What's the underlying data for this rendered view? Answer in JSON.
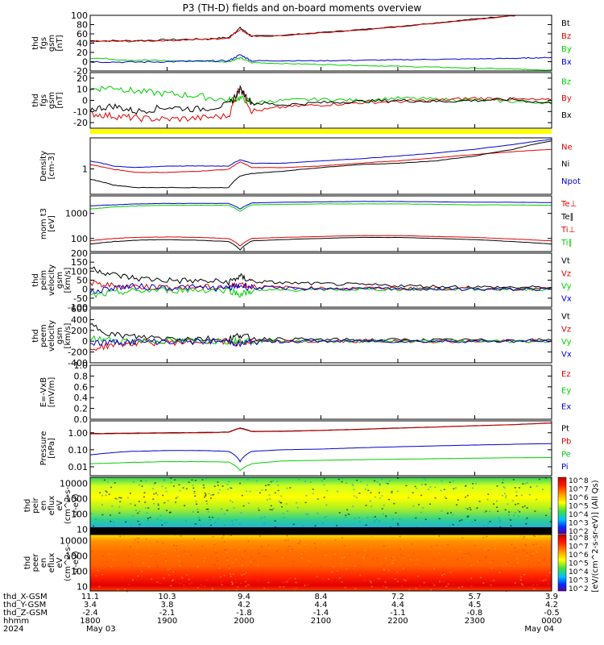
{
  "title": "P3 (TH-D) fields and on-board moments overview",
  "colors": {
    "black": "#000000",
    "red": "#e00000",
    "green": "#00d000",
    "blue": "#0000d0",
    "yellow": "#ffff00"
  },
  "colorbar": {
    "label": "[eV/(cm^2-s-sr-eV)] (All Qs)",
    "top_ticks": [
      "10^8",
      "10^7",
      "10^6",
      "10^5",
      "10^4",
      "10^3",
      "10^2"
    ],
    "bottom_ticks": [
      "10^8",
      "10^7",
      "10^6",
      "10^5",
      "10^4",
      "10^3",
      "10^2"
    ]
  },
  "xaxis": {
    "row_labels": [
      "thd_X-GSM",
      "thd_Y-GSM",
      "thd_Z-GSM",
      "hhmm",
      "2024"
    ],
    "columns": [
      {
        "x": "11.1",
        "y": "3.4",
        "z": "-2.4",
        "hhmm": "1800",
        "date": "May 03"
      },
      {
        "x": "10.3",
        "y": "3.8",
        "z": "-2.1",
        "hhmm": "1900",
        "date": ""
      },
      {
        "x": "9.4",
        "y": "4.2",
        "z": "-1.8",
        "hhmm": "2000",
        "date": ""
      },
      {
        "x": "8.4",
        "y": "4.4",
        "z": "-1.4",
        "hhmm": "2100",
        "date": ""
      },
      {
        "x": "7.2",
        "y": "4.4",
        "z": "-1.1",
        "hhmm": "2200",
        "date": ""
      },
      {
        "x": "5.7",
        "y": "4.5",
        "z": "-0.8",
        "hhmm": "2300",
        "date": ""
      },
      {
        "x": "3.9",
        "y": "4.2",
        "z": "-0.5",
        "hhmm": "0000",
        "date": "May 04"
      }
    ]
  },
  "chart_data": [
    {
      "type": "line",
      "panel": "fgs_gsm_total",
      "ylabel": [
        "thd",
        "fgs",
        "gsm",
        "[nT]"
      ],
      "yticks": [
        "100",
        "80",
        "60",
        "40",
        "20",
        "0",
        "-20"
      ],
      "ylim": [
        -20,
        100
      ],
      "legend": [
        {
          "name": "Bt",
          "color": "black"
        },
        {
          "name": "Bz",
          "color": "red"
        },
        {
          "name": "By",
          "color": "green"
        },
        {
          "name": "Bx",
          "color": "blue"
        }
      ],
      "x": [
        18.0,
        18.5,
        19.0,
        19.5,
        19.8,
        19.95,
        20.1,
        20.5,
        21.0,
        21.5,
        22.0,
        22.5,
        23.0,
        23.5,
        23.7,
        24.0
      ],
      "series": [
        {
          "color": "black",
          "values": [
            45,
            45,
            47,
            49,
            52,
            73,
            55,
            57,
            63,
            69,
            76,
            84,
            92,
            100,
            104,
            110
          ]
        },
        {
          "color": "red",
          "values": [
            44,
            44,
            46,
            48,
            51,
            70,
            54,
            56,
            62,
            68,
            75,
            83,
            91,
            99,
            103,
            109
          ]
        },
        {
          "color": "green",
          "values": [
            8,
            4,
            2,
            1,
            0,
            8,
            -2,
            -4,
            -6,
            -8,
            -10,
            -12,
            -14,
            -16,
            -17,
            -18
          ]
        },
        {
          "color": "blue",
          "values": [
            0,
            -1,
            0,
            1,
            2,
            15,
            2,
            2,
            2,
            3,
            4,
            5,
            6,
            7,
            8,
            9
          ]
        }
      ]
    },
    {
      "type": "line",
      "panel": "fgs_gsm_components",
      "ylabel": [
        "thd",
        "fgs",
        "gsm",
        "[nT]"
      ],
      "yticks": [
        "20",
        "10",
        "0",
        "-10",
        "-20"
      ],
      "ylim": [
        -25,
        25
      ],
      "legend": [
        {
          "name": "Bz",
          "color": "green"
        },
        {
          "name": "By",
          "color": "red"
        },
        {
          "name": "Bx",
          "color": "black"
        }
      ],
      "x": [
        18.0,
        18.3,
        18.6,
        19.0,
        19.4,
        19.8,
        19.95,
        20.1,
        20.5,
        21.0,
        21.5,
        22.0,
        22.5,
        23.0,
        23.5,
        24.0
      ],
      "series": [
        {
          "color": "green",
          "values": [
            10,
            12,
            8,
            6,
            4,
            0,
            2,
            -2,
            0,
            1,
            0,
            2,
            1,
            0,
            -1,
            -2
          ]
        },
        {
          "color": "red",
          "values": [
            -12,
            -14,
            -16,
            -17,
            -16,
            -14,
            13,
            -10,
            -6,
            -4,
            -2,
            -1,
            0,
            2,
            1,
            0
          ]
        },
        {
          "color": "black",
          "values": [
            -8,
            -5,
            -10,
            -6,
            -8,
            -4,
            10,
            -2,
            -4,
            -2,
            -1,
            0,
            -1,
            0,
            1,
            -3
          ]
        }
      ]
    },
    {
      "type": "line",
      "panel": "density",
      "ylabel": [
        "Density",
        "[cm-3]"
      ],
      "yticks": [
        "1"
      ],
      "legend": [
        {
          "name": "Ne",
          "color": "red"
        },
        {
          "name": "Ni",
          "color": "black"
        },
        {
          "name": "Npot",
          "color": "blue"
        }
      ],
      "ylim": [
        0.2,
        6
      ],
      "x": [
        18.0,
        18.3,
        18.6,
        19.0,
        19.4,
        19.8,
        19.95,
        20.1,
        20.5,
        21.0,
        21.5,
        22.0,
        22.5,
        23.0,
        23.5,
        24.0
      ],
      "series": [
        {
          "color": "blue",
          "values": [
            1.5,
            1.1,
            1.0,
            1.1,
            1.1,
            1.1,
            1.6,
            1.3,
            1.3,
            1.5,
            1.7,
            2.0,
            2.4,
            3.0,
            4.0,
            5.5
          ]
        },
        {
          "color": "red",
          "values": [
            1.2,
            0.9,
            0.75,
            0.75,
            0.8,
            0.9,
            1.4,
            1.0,
            1.0,
            1.1,
            1.3,
            1.5,
            1.8,
            2.2,
            2.6,
            3.0
          ]
        },
        {
          "color": "black",
          "values": [
            0.5,
            0.35,
            0.3,
            0.3,
            0.3,
            0.3,
            0.6,
            0.7,
            0.8,
            1.0,
            1.2,
            1.3,
            1.5,
            2.0,
            3.0,
            5.0
          ]
        }
      ]
    },
    {
      "type": "line",
      "panel": "temperature",
      "ylabel": [
        "mom t3",
        "[eV]"
      ],
      "yticks": [
        "1000",
        "100"
      ],
      "ylim": [
        30,
        5000
      ],
      "legend": [
        {
          "name": "Te⊥",
          "color": "red"
        },
        {
          "name": "Te∥",
          "color": "black"
        },
        {
          "name": "Ti⊥",
          "color": "red"
        },
        {
          "name": "Ti∥",
          "color": "green"
        }
      ],
      "x": [
        18.0,
        18.3,
        18.6,
        19.0,
        19.4,
        19.8,
        19.95,
        20.1,
        20.5,
        21.0,
        21.5,
        22.0,
        22.5,
        23.0,
        23.5,
        24.0
      ],
      "series": [
        {
          "color": "blue",
          "values": [
            2000,
            2200,
            2400,
            2500,
            2500,
            2500,
            1500,
            2600,
            2800,
            2900,
            3000,
            3000,
            2900,
            2800,
            2800,
            2700
          ]
        },
        {
          "color": "green",
          "values": [
            1500,
            1800,
            2000,
            2100,
            2100,
            2100,
            1200,
            2200,
            2300,
            2400,
            2400,
            2400,
            2300,
            2200,
            2200,
            2100
          ]
        },
        {
          "color": "red",
          "values": [
            80,
            100,
            110,
            115,
            110,
            100,
            50,
            100,
            110,
            120,
            130,
            130,
            120,
            110,
            95,
            80
          ]
        },
        {
          "color": "black",
          "values": [
            60,
            75,
            85,
            90,
            85,
            75,
            35,
            80,
            90,
            100,
            110,
            110,
            100,
            90,
            75,
            60
          ]
        }
      ]
    },
    {
      "type": "line",
      "panel": "peim_velocity",
      "ylabel": [
        "thd",
        "peim",
        "velocity",
        "gsm",
        "[km/s]"
      ],
      "yticks": [
        "200",
        "150",
        "100",
        "50",
        "0",
        "-50",
        "-100"
      ],
      "ylim": [
        -100,
        200
      ],
      "legend": [
        {
          "name": "Vt",
          "color": "black"
        },
        {
          "name": "Vz",
          "color": "red"
        },
        {
          "name": "Vy",
          "color": "green"
        },
        {
          "name": "Vx",
          "color": "blue"
        }
      ],
      "x": [
        18.0,
        18.3,
        18.6,
        19.0,
        19.4,
        19.8,
        19.95,
        20.1,
        20.5,
        21.0,
        21.5,
        22.0,
        22.5,
        23.0,
        23.5,
        24.0
      ],
      "series": [
        {
          "color": "black",
          "values": [
            120,
            80,
            60,
            50,
            45,
            40,
            70,
            45,
            35,
            30,
            25,
            20,
            15,
            12,
            10,
            10
          ]
        },
        {
          "color": "red",
          "values": [
            30,
            20,
            15,
            10,
            10,
            10,
            30,
            15,
            10,
            5,
            5,
            5,
            3,
            2,
            2,
            2
          ]
        },
        {
          "color": "green",
          "values": [
            -40,
            -20,
            -10,
            -5,
            -5,
            -5,
            -30,
            -10,
            -5,
            -3,
            -2,
            -1,
            0,
            0,
            0,
            0
          ]
        },
        {
          "color": "blue",
          "values": [
            -20,
            10,
            15,
            10,
            8,
            5,
            20,
            10,
            5,
            3,
            2,
            1,
            1,
            0,
            0,
            0
          ]
        }
      ]
    },
    {
      "type": "line",
      "panel": "peem_velocity",
      "ylabel": [
        "thd",
        "peem",
        "velocity",
        "gsm",
        "[km/s]"
      ],
      "yticks": [
        "600",
        "400",
        "200",
        "0",
        "-200",
        "-400"
      ],
      "ylim": [
        -400,
        600
      ],
      "legend": [
        {
          "name": "Vt",
          "color": "black"
        },
        {
          "name": "Vz",
          "color": "red"
        },
        {
          "name": "Vy",
          "color": "green"
        },
        {
          "name": "Vx",
          "color": "blue"
        }
      ],
      "x": [
        18.0,
        18.3,
        18.6,
        19.0,
        19.4,
        19.8,
        19.95,
        20.1,
        20.5,
        21.0,
        21.5,
        22.0,
        22.5,
        23.0,
        23.5,
        24.0
      ],
      "series": [
        {
          "color": "black",
          "values": [
            300,
            120,
            80,
            60,
            50,
            40,
            120,
            50,
            40,
            30,
            25,
            25,
            20,
            20,
            20,
            20
          ]
        },
        {
          "color": "red",
          "values": [
            -150,
            -60,
            -30,
            -20,
            -10,
            -10,
            -40,
            -10,
            -5,
            -5,
            0,
            0,
            0,
            0,
            0,
            0
          ]
        },
        {
          "color": "green",
          "values": [
            50,
            20,
            10,
            5,
            5,
            5,
            20,
            5,
            5,
            0,
            0,
            0,
            0,
            0,
            0,
            0
          ]
        },
        {
          "color": "blue",
          "values": [
            -30,
            -20,
            -10,
            -5,
            -5,
            -5,
            -60,
            -5,
            -5,
            0,
            0,
            0,
            0,
            0,
            0,
            0
          ]
        }
      ]
    },
    {
      "type": "line",
      "panel": "electric_field",
      "ylabel": [
        "E=-VxB",
        "[mV/m]"
      ],
      "yticks": [
        "1.0",
        "0.8",
        "0.6",
        "0.4",
        "0.2",
        "0.0"
      ],
      "ylim": [
        0,
        1
      ],
      "legend": [
        {
          "name": "Ez",
          "color": "red"
        },
        {
          "name": "Ey",
          "color": "green"
        },
        {
          "name": "Ex",
          "color": "blue"
        }
      ],
      "x": [],
      "series": []
    },
    {
      "type": "line",
      "panel": "pressure",
      "ylabel": [
        "Pressure",
        "[nPa]"
      ],
      "yticks": [
        "1.00",
        "0.10",
        "0.01"
      ],
      "ylim": [
        0.003,
        5
      ],
      "legend": [
        {
          "name": "Pt",
          "color": "black"
        },
        {
          "name": "Pb",
          "color": "red"
        },
        {
          "name": "Pe",
          "color": "green"
        },
        {
          "name": "Pi",
          "color": "blue"
        }
      ],
      "x": [
        18.0,
        18.5,
        19.0,
        19.5,
        19.8,
        19.95,
        20.1,
        20.5,
        21.0,
        21.5,
        22.0,
        22.5,
        23.0,
        23.5,
        24.0
      ],
      "series": [
        {
          "color": "black",
          "values": [
            0.9,
            0.95,
            1.0,
            1.05,
            1.1,
            1.9,
            1.2,
            1.25,
            1.4,
            1.6,
            1.9,
            2.2,
            2.6,
            3.0,
            3.8
          ]
        },
        {
          "color": "red",
          "values": [
            0.85,
            0.9,
            0.95,
            1.0,
            1.05,
            1.8,
            1.15,
            1.2,
            1.35,
            1.55,
            1.85,
            2.15,
            2.55,
            2.95,
            3.7
          ]
        },
        {
          "color": "blue",
          "values": [
            0.05,
            0.08,
            0.09,
            0.09,
            0.08,
            0.02,
            0.08,
            0.1,
            0.11,
            0.13,
            0.15,
            0.17,
            0.19,
            0.21,
            0.23
          ]
        },
        {
          "color": "green",
          "values": [
            0.015,
            0.018,
            0.02,
            0.02,
            0.019,
            0.006,
            0.015,
            0.022,
            0.024,
            0.026,
            0.028,
            0.03,
            0.032,
            0.034,
            0.035
          ]
        }
      ]
    },
    {
      "type": "heatmap",
      "panel": "peir_en_eflux",
      "ylabel": [
        "thd",
        "peir",
        "en",
        "eflux",
        "eV",
        "(cm^2-s-",
        "sr-eV)"
      ],
      "yticks": [
        "10000",
        "1000",
        "100",
        "10"
      ],
      "ylim": [
        5,
        25000
      ]
    },
    {
      "type": "heatmap",
      "panel": "peer_en_eflux",
      "ylabel": [
        "thd",
        "peer",
        "en",
        "eflux",
        "eV",
        "(cm^2-s-",
        "sr-eV)"
      ],
      "yticks": [
        "10000",
        "1000",
        "100",
        "10"
      ],
      "ylim": [
        5,
        25000
      ]
    }
  ]
}
